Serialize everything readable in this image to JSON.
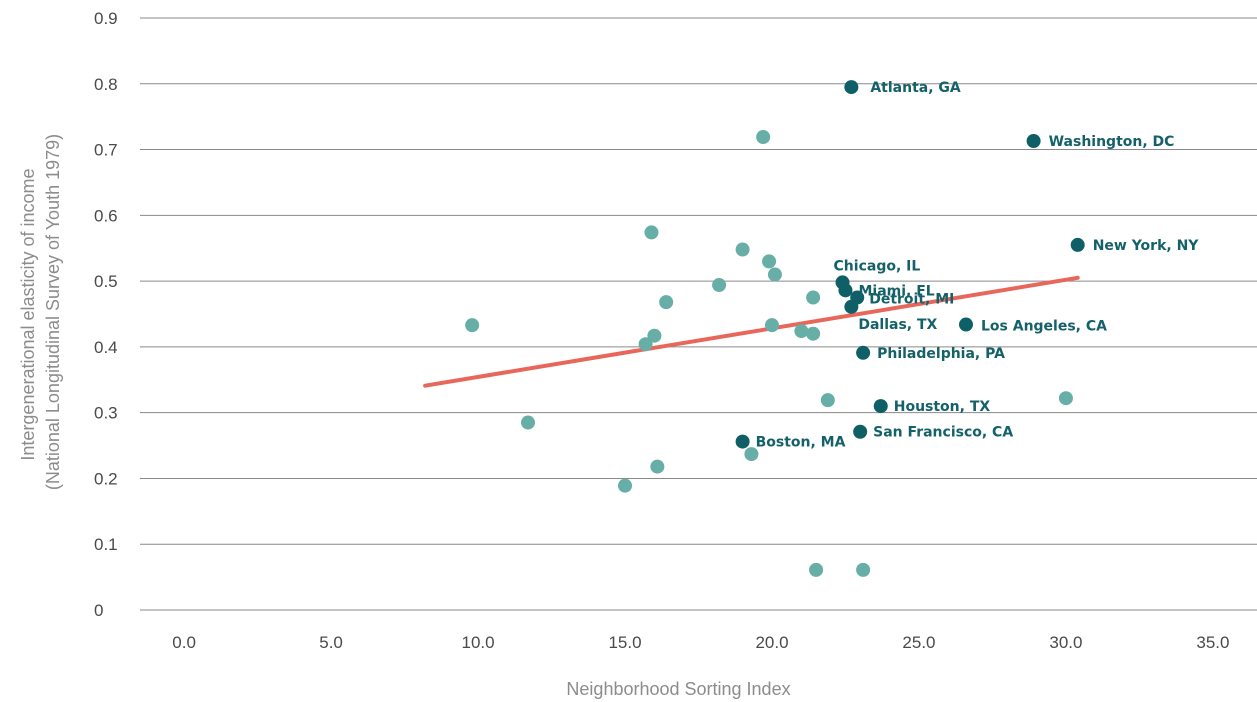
{
  "colors": {
    "highlight_point": "#0f5f66",
    "other_point": "#67aea6",
    "trendline": "#e8675a",
    "gridline": "#8a8a8a",
    "label_text": "#14616a"
  },
  "chart_data": {
    "type": "scatter",
    "xlabel": "Neighborhood Sorting Index",
    "ylabel": [
      "Intergenerational elasticity of income",
      "(National Longitudinal Survey of Youth 1979)"
    ],
    "xlim": [
      -1.5,
      36.5
    ],
    "ylim": [
      0,
      0.9
    ],
    "x_ticks": [
      0,
      5,
      10,
      15,
      20,
      25,
      30,
      35
    ],
    "x_tick_labels": [
      "0.0",
      "5.0",
      "10.0",
      "15.0",
      "20.0",
      "25.0",
      "30.0",
      "35.0"
    ],
    "y_ticks": [
      0,
      0.1,
      0.2,
      0.3,
      0.4,
      0.5,
      0.6,
      0.7,
      0.8,
      0.9
    ],
    "y_tick_labels": [
      "0",
      "0.1",
      "0.2",
      "0.3",
      "0.4",
      "0.5",
      "0.6",
      "0.7",
      "0.8",
      "0.9"
    ],
    "grid": "horizontal",
    "trendline": {
      "x": [
        8.2,
        30.4
      ],
      "y": [
        0.341,
        0.505
      ]
    },
    "labeled_points": [
      {
        "label": "Atlanta, GA",
        "x": 22.7,
        "y": 0.795
      },
      {
        "label": "Washington, DC",
        "x": 28.9,
        "y": 0.713
      },
      {
        "label": "New York, NY",
        "x": 30.4,
        "y": 0.555
      },
      {
        "label": "Chicago, IL",
        "x": 22.4,
        "y": 0.498
      },
      {
        "label": "Miami, FL",
        "x": 22.5,
        "y": 0.486
      },
      {
        "label": "Detroit, MI",
        "x": 22.9,
        "y": 0.475
      },
      {
        "label": "Dallas, TX",
        "x": 22.7,
        "y": 0.461
      },
      {
        "label": "Los Angeles, CA",
        "x": 26.6,
        "y": 0.434
      },
      {
        "label": "Philadelphia, PA",
        "x": 23.1,
        "y": 0.391
      },
      {
        "label": "Houston, TX",
        "x": 23.7,
        "y": 0.31
      },
      {
        "label": "San Francisco, CA",
        "x": 23.0,
        "y": 0.271
      },
      {
        "label": "Boston, MA",
        "x": 19.0,
        "y": 0.256
      }
    ],
    "other_points": [
      {
        "x": 9.8,
        "y": 0.433
      },
      {
        "x": 11.7,
        "y": 0.285
      },
      {
        "x": 15.0,
        "y": 0.189
      },
      {
        "x": 15.7,
        "y": 0.404
      },
      {
        "x": 15.9,
        "y": 0.574
      },
      {
        "x": 16.0,
        "y": 0.417
      },
      {
        "x": 16.1,
        "y": 0.218
      },
      {
        "x": 16.4,
        "y": 0.468
      },
      {
        "x": 18.2,
        "y": 0.494
      },
      {
        "x": 19.0,
        "y": 0.548
      },
      {
        "x": 19.3,
        "y": 0.237
      },
      {
        "x": 19.7,
        "y": 0.719
      },
      {
        "x": 19.9,
        "y": 0.53
      },
      {
        "x": 20.0,
        "y": 0.433
      },
      {
        "x": 20.1,
        "y": 0.51
      },
      {
        "x": 21.0,
        "y": 0.424
      },
      {
        "x": 21.4,
        "y": 0.475
      },
      {
        "x": 21.4,
        "y": 0.42
      },
      {
        "x": 21.5,
        "y": 0.061
      },
      {
        "x": 21.9,
        "y": 0.319
      },
      {
        "x": 23.1,
        "y": 0.061
      },
      {
        "x": 30.0,
        "y": 0.322
      }
    ]
  }
}
